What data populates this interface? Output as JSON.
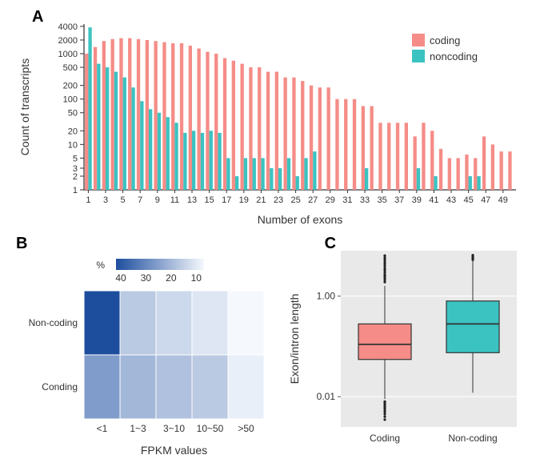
{
  "panelA": {
    "label": "A",
    "type": "bar",
    "xlabel": "Number of exons",
    "ylabel": "Count of transcripts",
    "x_categories": [
      1,
      2,
      3,
      4,
      5,
      6,
      7,
      8,
      9,
      10,
      11,
      12,
      13,
      14,
      15,
      16,
      17,
      18,
      19,
      20,
      21,
      22,
      23,
      24,
      25,
      26,
      27,
      28,
      29,
      30,
      31,
      32,
      33,
      34,
      35,
      36,
      37,
      38,
      39,
      40,
      41,
      42,
      43,
      44,
      45,
      46,
      47,
      48,
      49,
      50
    ],
    "x_tick_step": 2,
    "legend": {
      "coding": {
        "label": "coding",
        "color": "#f58c87"
      },
      "noncoding": {
        "label": "noncoding",
        "color": "#3bc3c1"
      }
    },
    "coding_values": [
      1000,
      1400,
      1900,
      2100,
      2200,
      2200,
      2100,
      2000,
      1900,
      1800,
      1700,
      1700,
      1500,
      1300,
      1100,
      1000,
      800,
      700,
      600,
      500,
      500,
      400,
      400,
      300,
      300,
      250,
      200,
      180,
      180,
      100,
      100,
      100,
      70,
      70,
      30,
      30,
      30,
      30,
      15,
      30,
      20,
      8,
      5,
      5,
      6,
      5,
      15,
      10,
      7,
      7
    ],
    "noncoding_values": [
      3800,
      600,
      500,
      400,
      300,
      180,
      90,
      60,
      50,
      40,
      30,
      18,
      20,
      18,
      20,
      18,
      5,
      2,
      5,
      5,
      5,
      3,
      3,
      5,
      2,
      5,
      7,
      0,
      0,
      0,
      0,
      0,
      3,
      0,
      0,
      0,
      0,
      0,
      3,
      0,
      2,
      0,
      0,
      0,
      2,
      2,
      0,
      0,
      0,
      0
    ],
    "yscale": "log",
    "ylim": [
      1,
      4500
    ],
    "yticks": [
      1,
      2,
      3,
      5,
      10,
      20,
      50,
      100,
      200,
      500,
      1000,
      2000,
      4000
    ],
    "axis_color": "#333333",
    "tick_fontsize": 11,
    "label_fontsize": 14,
    "legend_fontsize": 13,
    "bar_group_width": 0.8
  },
  "panelB": {
    "label": "B",
    "type": "heatmap",
    "xlabel": "FPKM values",
    "x_categories": [
      "<1",
      "1~3",
      "3~10",
      "10~50",
      ">50"
    ],
    "y_categories": [
      "Non-coding",
      "Conding"
    ],
    "values": [
      [
        45,
        18,
        15,
        12,
        8
      ],
      [
        28,
        22,
        20,
        18,
        10
      ]
    ],
    "colorbar": {
      "label": "%",
      "ticks": [
        40,
        30,
        20,
        10
      ],
      "high_color": "#1d4e9e",
      "low_color": "#f5f8fd"
    },
    "tick_fontsize": 12,
    "label_fontsize": 14,
    "grid_color": "#ffffff",
    "background": "#e9e9e9"
  },
  "panelC": {
    "label": "C",
    "type": "boxplot",
    "ylabel": "Exon/intron length",
    "x_categories": [
      "Coding",
      "Non-coding"
    ],
    "yscale": "log",
    "ylim": [
      0.0025,
      8
    ],
    "yticks": [
      0.01,
      1.0
    ],
    "boxes": [
      {
        "category": "Coding",
        "color": "#f58c87",
        "border": "#333333",
        "q1": 0.055,
        "median": 0.11,
        "q3": 0.28,
        "whisker_low": 0.009,
        "whisker_high": 1.6,
        "outliers_low": [
          0.0035,
          0.004,
          0.0045,
          0.005,
          0.0055,
          0.006,
          0.0065,
          0.007,
          0.0075,
          0.008
        ],
        "outliers_high": [
          1.9,
          2.1,
          2.3,
          2.5,
          2.7,
          3.0,
          3.3,
          3.6,
          4.0,
          4.4,
          4.8,
          5.3,
          5.8,
          6.4
        ]
      },
      {
        "category": "Non-coding",
        "color": "#3bc3c1",
        "border": "#333333",
        "q1": 0.075,
        "median": 0.28,
        "q3": 0.8,
        "whisker_low": 0.012,
        "whisker_high": 5.0,
        "outliers_low": [],
        "outliers_high": [
          5.3,
          5.6,
          5.9,
          6.2,
          6.5
        ]
      }
    ],
    "tick_fontsize": 12,
    "label_fontsize": 14,
    "background": "#e9e9e9",
    "grid_color": "#ffffff",
    "box_width": 0.6
  }
}
